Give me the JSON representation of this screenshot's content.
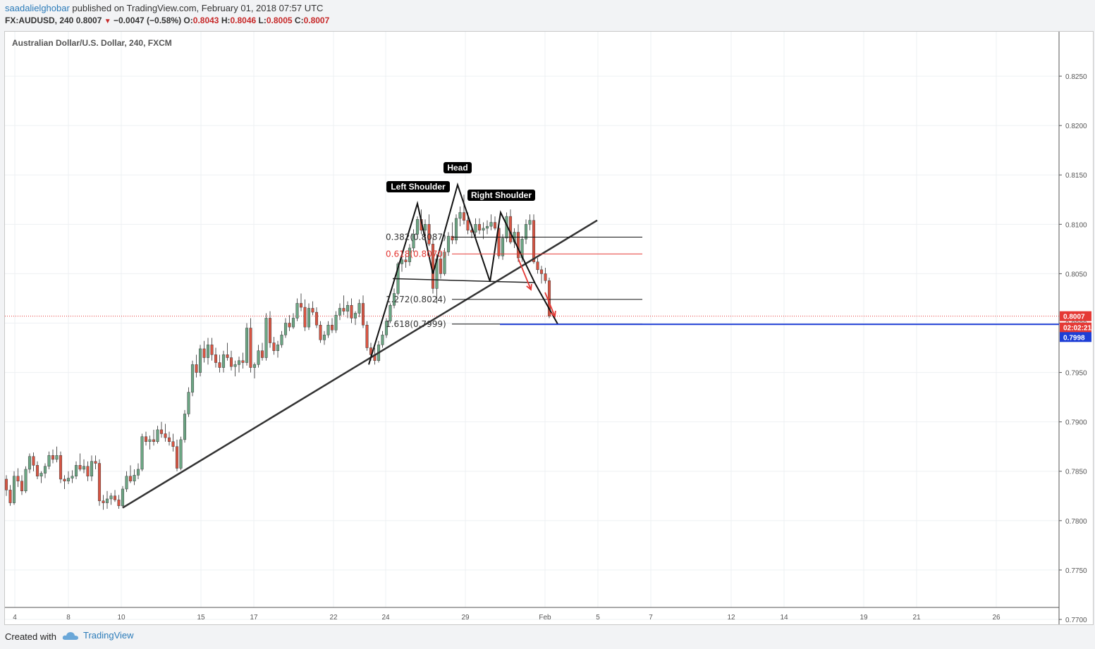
{
  "header": {
    "author": "saadalielghobar",
    "published_text": "published on TradingView.com, February 01, 2018 07:57 UTC",
    "symbol": "FX:AUDUSD, 240",
    "last": "0.8007",
    "change": "−0.0047 (−0.58%)",
    "open_label": "O:",
    "open": "0.8043",
    "high_label": "H:",
    "high": "0.8046",
    "low_label": "L:",
    "low": "0.8005",
    "close_label": "C:",
    "close": "0.8007"
  },
  "footer": {
    "created_with": "Created with",
    "brand": "TradingView"
  },
  "colors": {
    "up_candle": "#6ba583",
    "down_candle": "#d75442",
    "fib_red": "#e53935",
    "target_line": "#1e3ed6",
    "price_tag_red": "#e53935",
    "price_tag_blue": "#1e3ed6"
  },
  "chart_data": {
    "type": "candlestick",
    "title": "Australian Dollar/U.S. Dollar, 240, FXCM",
    "ylim": [
      0.7695,
      0.8295
    ],
    "y_ticks": [
      "0.8250",
      "0.8200",
      "0.8150",
      "0.8100",
      "0.8050",
      "0.8000",
      "0.7950",
      "0.7900",
      "0.7850",
      "0.7800",
      "0.7750",
      "0.7700"
    ],
    "x_ticks": [
      "4",
      "8",
      "10",
      "15",
      "17",
      "22",
      "24",
      "29",
      "Feb",
      "5",
      "7",
      "12",
      "14",
      "19",
      "21",
      "26"
    ],
    "grid": true,
    "last_price": "0.8007",
    "countdown": "02:02:21",
    "target_price": "0.7998",
    "pattern_labels": [
      "Left Shoulder",
      "Head",
      "Right Shoulder"
    ],
    "fib_levels": [
      {
        "label": "0.382(0.8087)",
        "value": 0.8087,
        "color": "black"
      },
      {
        "label": "0.618(0.8070)",
        "value": 0.807,
        "color": "red"
      },
      {
        "label": "1.272(0.8024)",
        "value": 0.8024,
        "color": "black"
      },
      {
        "label": "1.618(0.7999)",
        "value": 0.7999,
        "color": "black"
      }
    ],
    "candles": [
      [
        0.7842,
        0.7846,
        0.7825,
        0.7831
      ],
      [
        0.7831,
        0.7836,
        0.7815,
        0.7818
      ],
      [
        0.7818,
        0.785,
        0.7816,
        0.7845
      ],
      [
        0.7845,
        0.7853,
        0.7834,
        0.784
      ],
      [
        0.784,
        0.7846,
        0.7826,
        0.783
      ],
      [
        0.783,
        0.7855,
        0.7828,
        0.7852
      ],
      [
        0.7852,
        0.7868,
        0.7848,
        0.7865
      ],
      [
        0.7865,
        0.7869,
        0.785,
        0.7856
      ],
      [
        0.7856,
        0.786,
        0.7842,
        0.7845
      ],
      [
        0.7845,
        0.785,
        0.7838,
        0.7848
      ],
      [
        0.7848,
        0.7858,
        0.7843,
        0.7855
      ],
      [
        0.7855,
        0.787,
        0.7852,
        0.7866
      ],
      [
        0.7866,
        0.7872,
        0.7858,
        0.7862
      ],
      [
        0.7862,
        0.7875,
        0.7859,
        0.7866
      ],
      [
        0.7866,
        0.787,
        0.7838,
        0.7842
      ],
      [
        0.7842,
        0.7846,
        0.7832,
        0.784
      ],
      [
        0.784,
        0.785,
        0.7837,
        0.7843
      ],
      [
        0.7843,
        0.7851,
        0.7838,
        0.7845
      ],
      [
        0.7845,
        0.786,
        0.7842,
        0.7856
      ],
      [
        0.7856,
        0.7868,
        0.785,
        0.7852
      ],
      [
        0.7852,
        0.7862,
        0.7848,
        0.7855
      ],
      [
        0.7855,
        0.786,
        0.784,
        0.7845
      ],
      [
        0.7845,
        0.7866,
        0.784,
        0.786
      ],
      [
        0.786,
        0.7866,
        0.7852,
        0.7858
      ],
      [
        0.7858,
        0.7862,
        0.7815,
        0.782
      ],
      [
        0.782,
        0.7826,
        0.7811,
        0.7818
      ],
      [
        0.7818,
        0.783,
        0.7812,
        0.7822
      ],
      [
        0.7822,
        0.7828,
        0.7816,
        0.7825
      ],
      [
        0.7825,
        0.7831,
        0.7819,
        0.7821
      ],
      [
        0.7821,
        0.7826,
        0.7812,
        0.7815
      ],
      [
        0.7815,
        0.7835,
        0.7813,
        0.7832
      ],
      [
        0.7832,
        0.785,
        0.7829,
        0.7845
      ],
      [
        0.7845,
        0.7856,
        0.7838,
        0.784
      ],
      [
        0.784,
        0.7852,
        0.7836,
        0.7846
      ],
      [
        0.7846,
        0.7858,
        0.7842,
        0.7852
      ],
      [
        0.7852,
        0.7888,
        0.785,
        0.7885
      ],
      [
        0.7885,
        0.789,
        0.7876,
        0.788
      ],
      [
        0.788,
        0.7886,
        0.7872,
        0.7882
      ],
      [
        0.7882,
        0.7892,
        0.7876,
        0.788
      ],
      [
        0.788,
        0.7896,
        0.7878,
        0.7892
      ],
      [
        0.7892,
        0.79,
        0.7884,
        0.7888
      ],
      [
        0.7888,
        0.7898,
        0.788,
        0.7884
      ],
      [
        0.7884,
        0.789,
        0.7876,
        0.788
      ],
      [
        0.788,
        0.7888,
        0.787,
        0.7875
      ],
      [
        0.7875,
        0.7882,
        0.785,
        0.7853
      ],
      [
        0.7853,
        0.7885,
        0.7851,
        0.7882
      ],
      [
        0.7882,
        0.7912,
        0.7879,
        0.7908
      ],
      [
        0.7908,
        0.7935,
        0.7905,
        0.793
      ],
      [
        0.793,
        0.7962,
        0.7926,
        0.7958
      ],
      [
        0.7958,
        0.7968,
        0.7945,
        0.795
      ],
      [
        0.795,
        0.7978,
        0.7946,
        0.7974
      ],
      [
        0.7974,
        0.7982,
        0.796,
        0.7965
      ],
      [
        0.7965,
        0.7985,
        0.7958,
        0.7978
      ],
      [
        0.7978,
        0.7985,
        0.7962,
        0.7968
      ],
      [
        0.7968,
        0.7975,
        0.7955,
        0.796
      ],
      [
        0.796,
        0.7968,
        0.795,
        0.7955
      ],
      [
        0.7955,
        0.7972,
        0.795,
        0.7968
      ],
      [
        0.7968,
        0.798,
        0.7962,
        0.7965
      ],
      [
        0.7965,
        0.7972,
        0.7952,
        0.7956
      ],
      [
        0.7956,
        0.7962,
        0.7946,
        0.7958
      ],
      [
        0.7958,
        0.7966,
        0.795,
        0.7962
      ],
      [
        0.7962,
        0.797,
        0.7954,
        0.796
      ],
      [
        0.796,
        0.8,
        0.7957,
        0.7995
      ],
      [
        0.7995,
        0.8005,
        0.795,
        0.7955
      ],
      [
        0.7955,
        0.796,
        0.7944,
        0.7958
      ],
      [
        0.7958,
        0.7978,
        0.7955,
        0.7972
      ],
      [
        0.7972,
        0.798,
        0.7962,
        0.7965
      ],
      [
        0.7965,
        0.801,
        0.7962,
        0.8005
      ],
      [
        0.8005,
        0.8012,
        0.7975,
        0.798
      ],
      [
        0.798,
        0.7986,
        0.7968,
        0.7972
      ],
      [
        0.7972,
        0.7982,
        0.7965,
        0.7978
      ],
      [
        0.7978,
        0.7992,
        0.7975,
        0.7988
      ],
      [
        0.7988,
        0.8005,
        0.7985,
        0.8
      ],
      [
        0.8,
        0.8008,
        0.7992,
        0.7996
      ],
      [
        0.7996,
        0.801,
        0.7994,
        0.8005
      ],
      [
        0.8005,
        0.8025,
        0.8002,
        0.802
      ],
      [
        0.802,
        0.803,
        0.8012,
        0.8016
      ],
      [
        0.8016,
        0.8024,
        0.7992,
        0.7996
      ],
      [
        0.7996,
        0.802,
        0.7993,
        0.8015
      ],
      [
        0.8015,
        0.8022,
        0.8008,
        0.8011
      ],
      [
        0.8011,
        0.8016,
        0.7995,
        0.7998
      ],
      [
        0.7998,
        0.8002,
        0.798,
        0.7983
      ],
      [
        0.7983,
        0.7992,
        0.7978,
        0.7988
      ],
      [
        0.7988,
        0.8002,
        0.7985,
        0.7998
      ],
      [
        0.7998,
        0.8005,
        0.799,
        0.7993
      ],
      [
        0.7993,
        0.8012,
        0.799,
        0.8008
      ],
      [
        0.8008,
        0.802,
        0.8003,
        0.8015
      ],
      [
        0.8015,
        0.8028,
        0.8008,
        0.8012
      ],
      [
        0.8012,
        0.8022,
        0.8005,
        0.8018
      ],
      [
        0.8018,
        0.8025,
        0.8,
        0.8005
      ],
      [
        0.8005,
        0.8012,
        0.7998,
        0.801
      ],
      [
        0.801,
        0.8024,
        0.8006,
        0.802
      ],
      [
        0.802,
        0.8028,
        0.7995,
        0.7998
      ],
      [
        0.7998,
        0.8002,
        0.7972,
        0.7975
      ],
      [
        0.7975,
        0.798,
        0.7962,
        0.7968
      ],
      [
        0.7968,
        0.7975,
        0.7958,
        0.7962
      ],
      [
        0.7962,
        0.7982,
        0.796,
        0.7978
      ],
      [
        0.7978,
        0.7992,
        0.7975,
        0.7988
      ],
      [
        0.7988,
        0.8005,
        0.7985,
        0.8002
      ],
      [
        0.8002,
        0.802,
        0.8,
        0.8018
      ],
      [
        0.8018,
        0.8035,
        0.8015,
        0.803
      ],
      [
        0.803,
        0.8062,
        0.8028,
        0.806
      ],
      [
        0.806,
        0.8072,
        0.8052,
        0.8064
      ],
      [
        0.8064,
        0.807,
        0.8056,
        0.8062
      ],
      [
        0.8062,
        0.808,
        0.8058,
        0.8076
      ],
      [
        0.8076,
        0.8095,
        0.8072,
        0.809
      ],
      [
        0.809,
        0.8108,
        0.8085,
        0.8105
      ],
      [
        0.8105,
        0.8115,
        0.809,
        0.8094
      ],
      [
        0.8094,
        0.8105,
        0.8086,
        0.81
      ],
      [
        0.81,
        0.811,
        0.8078,
        0.808
      ],
      [
        0.808,
        0.8086,
        0.803,
        0.8035
      ],
      [
        0.8035,
        0.807,
        0.802,
        0.8065
      ],
      [
        0.8065,
        0.8072,
        0.8045,
        0.805
      ],
      [
        0.805,
        0.8076,
        0.8048,
        0.8072
      ],
      [
        0.8072,
        0.8092,
        0.8068,
        0.8088
      ],
      [
        0.8088,
        0.8102,
        0.808,
        0.8084
      ],
      [
        0.8084,
        0.811,
        0.808,
        0.8106
      ],
      [
        0.8106,
        0.8118,
        0.8098,
        0.8112
      ],
      [
        0.8112,
        0.813,
        0.81,
        0.8104
      ],
      [
        0.8104,
        0.8112,
        0.809,
        0.8094
      ],
      [
        0.8094,
        0.81,
        0.8086,
        0.8092
      ],
      [
        0.8092,
        0.8106,
        0.8088,
        0.81
      ],
      [
        0.81,
        0.8106,
        0.809,
        0.8094
      ],
      [
        0.8094,
        0.8102,
        0.8085,
        0.8096
      ],
      [
        0.8096,
        0.8104,
        0.809,
        0.8098
      ],
      [
        0.8098,
        0.811,
        0.8094,
        0.8102
      ],
      [
        0.8102,
        0.8108,
        0.8094,
        0.8096
      ],
      [
        0.8096,
        0.8102,
        0.8065,
        0.8068
      ],
      [
        0.8068,
        0.809,
        0.8064,
        0.8086
      ],
      [
        0.8086,
        0.8112,
        0.8082,
        0.8108
      ],
      [
        0.8108,
        0.8115,
        0.808,
        0.8082
      ],
      [
        0.8082,
        0.8096,
        0.8076,
        0.8092
      ],
      [
        0.8092,
        0.81,
        0.8062,
        0.8066
      ],
      [
        0.8066,
        0.8088,
        0.8062,
        0.8085
      ],
      [
        0.8085,
        0.8105,
        0.808,
        0.81
      ],
      [
        0.81,
        0.811,
        0.8094,
        0.8104
      ],
      [
        0.8104,
        0.811,
        0.806,
        0.8062
      ],
      [
        0.8062,
        0.8066,
        0.805,
        0.8054
      ],
      [
        0.8054,
        0.8058,
        0.804,
        0.805
      ],
      [
        0.805,
        0.8056,
        0.804,
        0.8043
      ],
      [
        0.8043,
        0.8046,
        0.8005,
        0.8007
      ]
    ]
  }
}
